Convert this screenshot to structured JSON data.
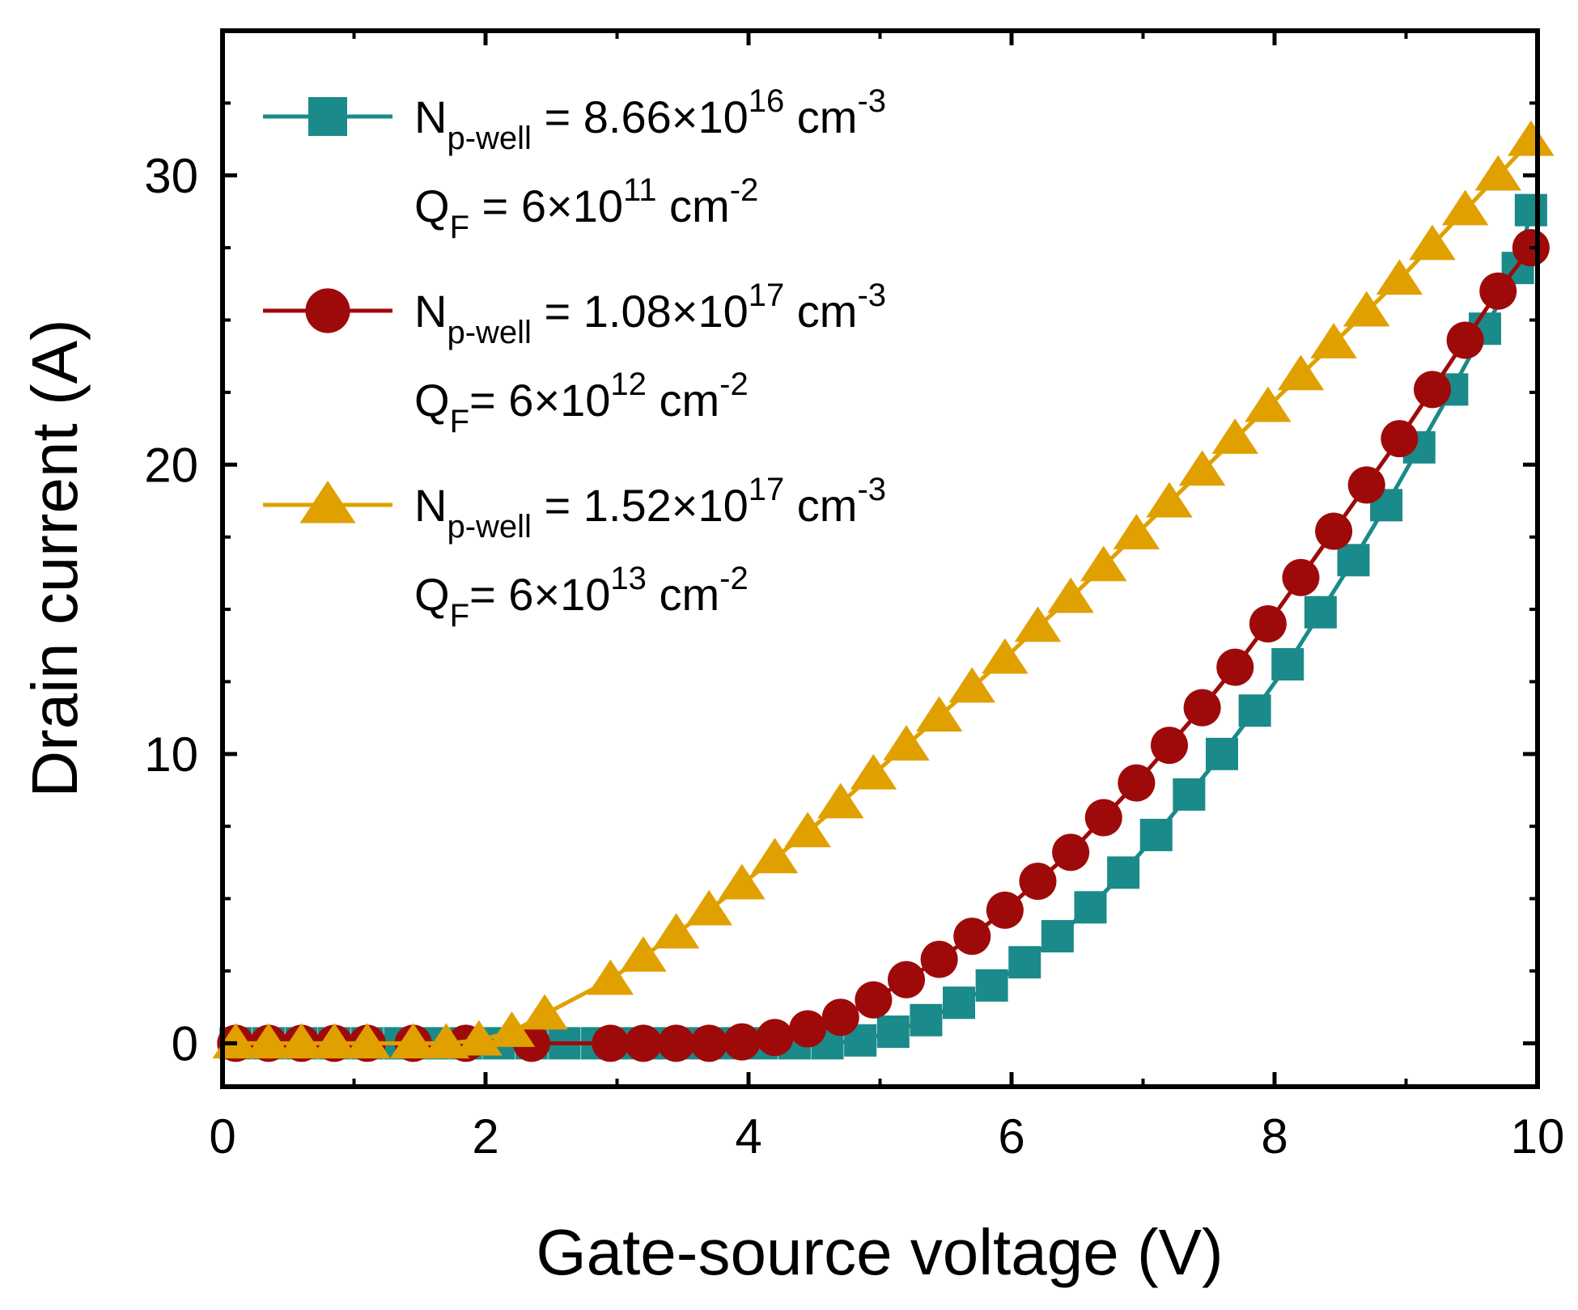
{
  "chart_data": {
    "type": "line",
    "title": "",
    "xlabel": "Gate-source voltage (V)",
    "ylabel": "Drain current (A)",
    "xlim": [
      0,
      10
    ],
    "ylim": [
      -1.5,
      35
    ],
    "xticks": [
      0,
      2,
      4,
      6,
      8,
      10
    ],
    "xtick_labels": [
      "0",
      "2",
      "4",
      "6",
      "8",
      "10"
    ],
    "yticks": [
      0,
      10,
      20,
      30
    ],
    "ytick_labels": [
      "0",
      "10",
      "20",
      "30"
    ],
    "legend_position": "top-left",
    "series": [
      {
        "name": "N_p-well = 8.66×10^16 cm^-3, Q_F = 6×10^11 cm^-2",
        "color": "#1A8A8A",
        "marker": "square",
        "legend": {
          "line1": {
            "base": "N",
            "sub": "p-well",
            "mid": " = 8.66×10",
            "sup": "16",
            "tail": " cm",
            "tailsup": "-3"
          },
          "line2": {
            "base": "Q",
            "sub": "F",
            "mid": " = 6×10",
            "sup": "11",
            "tail": " cm",
            "tailsup": "-2"
          }
        },
        "x": [
          0.1,
          0.35,
          0.6,
          0.85,
          1.1,
          1.35,
          1.6,
          1.85,
          2.1,
          2.35,
          2.6,
          2.85,
          3.1,
          3.35,
          3.6,
          3.85,
          4.1,
          4.35,
          4.6,
          4.85,
          5.1,
          5.35,
          5.6,
          5.85,
          6.1,
          6.35,
          6.6,
          6.85,
          7.1,
          7.35,
          7.6,
          7.85,
          8.1,
          8.35,
          8.6,
          8.85,
          9.1,
          9.35,
          9.6,
          9.85,
          9.95
        ],
        "y": [
          0,
          0,
          0,
          0,
          0,
          0,
          0,
          0,
          0,
          0,
          0,
          0,
          0,
          0,
          0,
          0,
          0,
          0,
          0,
          0.1,
          0.4,
          0.8,
          1.4,
          2.0,
          2.8,
          3.7,
          4.7,
          5.9,
          7.2,
          8.6,
          10.0,
          11.5,
          13.1,
          14.9,
          16.7,
          18.6,
          20.6,
          22.6,
          24.7,
          26.8,
          28.8
        ]
      },
      {
        "name": "N_p-well = 1.08×10^17 cm^-3, Q_F = 6×10^12 cm^-2",
        "color": "#9E0A0A",
        "marker": "circle",
        "legend": {
          "line1": {
            "base": "N",
            "sub": "p-well",
            "mid": " = 1.08×10",
            "sup": "17",
            "tail": " cm",
            "tailsup": "-3"
          },
          "line2": {
            "base": "Q",
            "sub": "F",
            "mid": "= 6×10",
            "sup": "12",
            "tail": " cm",
            "tailsup": "-2"
          }
        },
        "x": [
          0.1,
          0.35,
          0.6,
          0.85,
          1.1,
          1.45,
          1.85,
          2.35,
          2.95,
          3.2,
          3.45,
          3.7,
          3.95,
          4.2,
          4.45,
          4.7,
          4.95,
          5.2,
          5.45,
          5.7,
          5.95,
          6.2,
          6.45,
          6.7,
          6.95,
          7.2,
          7.45,
          7.7,
          7.95,
          8.2,
          8.45,
          8.7,
          8.95,
          9.2,
          9.45,
          9.7,
          9.95
        ],
        "y": [
          0,
          0,
          0,
          0,
          0,
          0,
          0,
          0,
          0,
          0,
          0,
          0,
          0.05,
          0.2,
          0.5,
          0.9,
          1.5,
          2.2,
          2.9,
          3.7,
          4.6,
          5.6,
          6.6,
          7.8,
          9.0,
          10.3,
          11.6,
          13.0,
          14.5,
          16.1,
          17.7,
          19.3,
          20.9,
          22.6,
          24.3,
          26.0,
          27.5
        ]
      },
      {
        "name": "N_p-well = 1.52×10^17 cm^-3, Q_F = 6×10^13 cm^-2",
        "color": "#E0A000",
        "marker": "triangle",
        "legend": {
          "line1": {
            "base": "N",
            "sub": "p-well",
            "mid": " = 1.52×10",
            "sup": "17",
            "tail": " cm",
            "tailsup": "-3"
          },
          "line2": {
            "base": "Q",
            "sub": "F",
            "mid": "= 6×10",
            "sup": "13",
            "tail": " cm",
            "tailsup": "-2"
          }
        },
        "x": [
          0.1,
          0.35,
          0.6,
          0.85,
          1.1,
          1.45,
          1.7,
          1.95,
          2.2,
          2.45,
          2.95,
          3.2,
          3.45,
          3.7,
          3.95,
          4.2,
          4.45,
          4.7,
          4.95,
          5.2,
          5.45,
          5.7,
          5.95,
          6.2,
          6.45,
          6.7,
          6.95,
          7.2,
          7.45,
          7.7,
          7.95,
          8.2,
          8.45,
          8.7,
          8.95,
          9.2,
          9.45,
          9.7,
          9.95
        ],
        "y": [
          0,
          0,
          0,
          0,
          0,
          0,
          0,
          0.1,
          0.4,
          1.0,
          2.2,
          3.0,
          3.8,
          4.6,
          5.5,
          6.4,
          7.3,
          8.3,
          9.3,
          10.3,
          11.3,
          12.3,
          13.3,
          14.4,
          15.4,
          16.5,
          17.6,
          18.7,
          19.8,
          20.9,
          22.0,
          23.1,
          24.2,
          25.3,
          26.4,
          27.6,
          28.8,
          30.0,
          31.2
        ]
      }
    ]
  }
}
